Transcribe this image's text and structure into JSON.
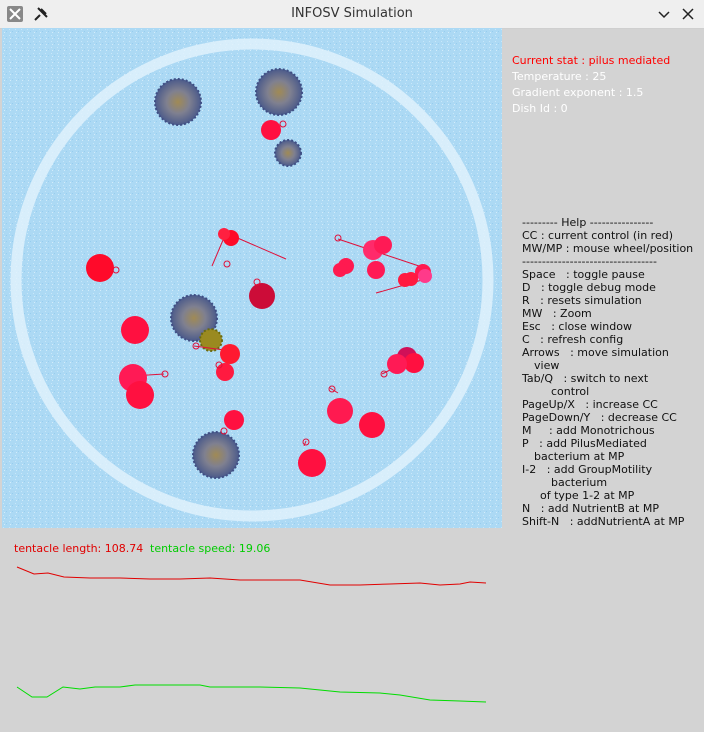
{
  "window": {
    "title": "INFOSV Simulation"
  },
  "stats": {
    "current": "Current stat : pilus mediated",
    "temperature": "Temperature : 25",
    "gradient": "Gradient exponent : 1.5",
    "dish": "Dish Id : 0"
  },
  "help": [
    "--------- Help ----------------",
    "CC : current control (in red)",
    "MW/MP : mouse wheel/position",
    "----------------------------------",
    "Space   : toggle pause",
    "D   : toggle debug mode",
    "R   : resets simulation",
    "MW   : Zoom",
    "Esc   : close window",
    "C   : refresh config",
    "Arrows   : move simulation",
    "view",
    "Tab/Q   : switch to next",
    "control",
    "PageUp/X   : increase CC",
    "PageDown/Y   : decrease CC",
    "M     : add Monotrichous",
    "P   : add PilusMediated",
    "bacterium at MP",
    "I-2   : add GroupMotility",
    "bacterium",
    "of type 1-2 at MP",
    "N   : add NutrientB at MP",
    "Shift-N   : addNutrientA at MP"
  ],
  "graph": {
    "length_label": "tentacle length: 108.74",
    "speed_label": "tentacle speed: 19.06"
  }
}
